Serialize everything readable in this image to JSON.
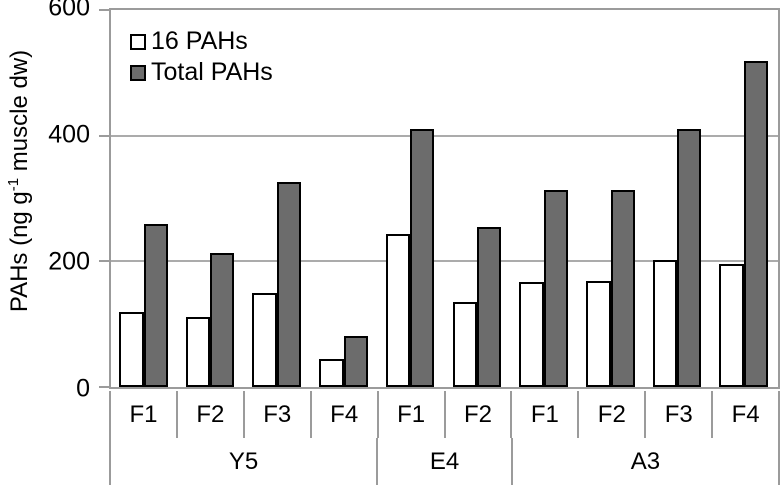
{
  "chart_data": {
    "type": "bar",
    "title": "",
    "ylabel": "PAHs (ng g-1 muscle dw)",
    "ylabel_pre": "PAHs (ng g",
    "ylabel_sup": "-1",
    "ylabel_post": " muscle dw)",
    "ylim": [
      0,
      600
    ],
    "yticks": [
      0,
      200,
      400,
      600
    ],
    "ytick_labels": [
      "0",
      "200",
      "400",
      "600"
    ],
    "grid": "horizontal gridlines at 200 and 400",
    "legend_position": "top-left inside plot",
    "groups": [
      {
        "label": "Y5",
        "categories": [
          "F1",
          "F2",
          "F3",
          "F4"
        ]
      },
      {
        "label": "E4",
        "categories": [
          "F1",
          "F2"
        ]
      },
      {
        "label": "A3",
        "categories": [
          "F1",
          "F2",
          "F3",
          "F4"
        ]
      }
    ],
    "series": [
      {
        "name": "16 PAHs",
        "color": "#ffffff",
        "border_color": "#000000",
        "values": [
          120,
          112,
          149,
          45,
          243,
          136,
          167,
          168,
          202,
          196
        ]
      },
      {
        "name": "Total PAHs",
        "color": "#6c6c6c",
        "border_color": "#000000",
        "values": [
          260,
          214,
          327,
          81,
          410,
          254,
          313,
          314,
          410,
          519
        ]
      }
    ]
  },
  "colors": {
    "axis_line": "#9b9b9b",
    "gridline": "#ababab",
    "text": "#000000",
    "background": "#ffffff"
  }
}
